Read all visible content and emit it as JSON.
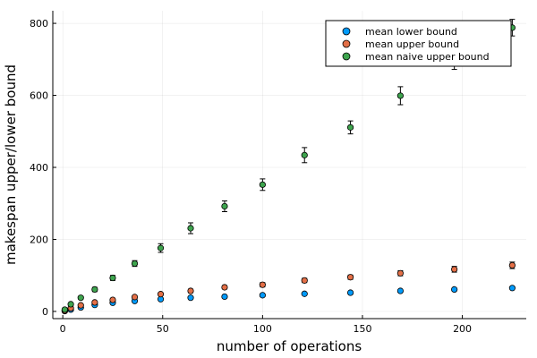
{
  "chart_data": {
    "type": "scatter",
    "title": "",
    "xlabel": "number of operations",
    "ylabel": "makespan upper/lower bound",
    "xlim": [
      -5,
      232
    ],
    "ylim": [
      -20,
      835
    ],
    "xticks": [
      0,
      50,
      100,
      150,
      200
    ],
    "yticks": [
      0,
      200,
      400,
      600,
      800
    ],
    "x_tick_labels": [
      "0",
      "50",
      "100",
      "150",
      "200"
    ],
    "y_tick_labels": [
      "0",
      "200",
      "400",
      "600",
      "800"
    ],
    "grid": true,
    "legend_position": "top-right",
    "x": [
      1,
      4,
      9,
      16,
      25,
      36,
      49,
      64,
      81,
      100,
      121,
      144,
      169,
      196,
      225
    ],
    "series": [
      {
        "name": "mean lower bound",
        "color": "#009AFA",
        "values": [
          1,
          5,
          11,
          18,
          24,
          29,
          34,
          38,
          41,
          45,
          49,
          52,
          57,
          61,
          65
        ],
        "errors": [
          0.5,
          1,
          1.5,
          2,
          2,
          2,
          2.5,
          2.5,
          3,
          3,
          3,
          3,
          3,
          3,
          3
        ]
      },
      {
        "name": "mean upper bound",
        "color": "#E36F47",
        "values": [
          2,
          9,
          17,
          25,
          32,
          40,
          48,
          57,
          67,
          74,
          86,
          95,
          106,
          117,
          128
        ],
        "errors": [
          1,
          1.5,
          2,
          3,
          3,
          4,
          4,
          5,
          5,
          6,
          6,
          6,
          7,
          8,
          9
        ]
      },
      {
        "name": "mean naive upper bound",
        "color": "#3EA44E",
        "values": [
          5,
          20,
          38,
          61,
          93,
          133,
          176,
          231,
          292,
          352,
          434,
          511,
          599,
          690,
          788
        ],
        "errors": [
          1,
          2,
          4,
          6,
          7,
          8,
          12,
          15,
          15,
          16,
          21,
          18,
          25,
          18,
          23
        ]
      }
    ]
  }
}
